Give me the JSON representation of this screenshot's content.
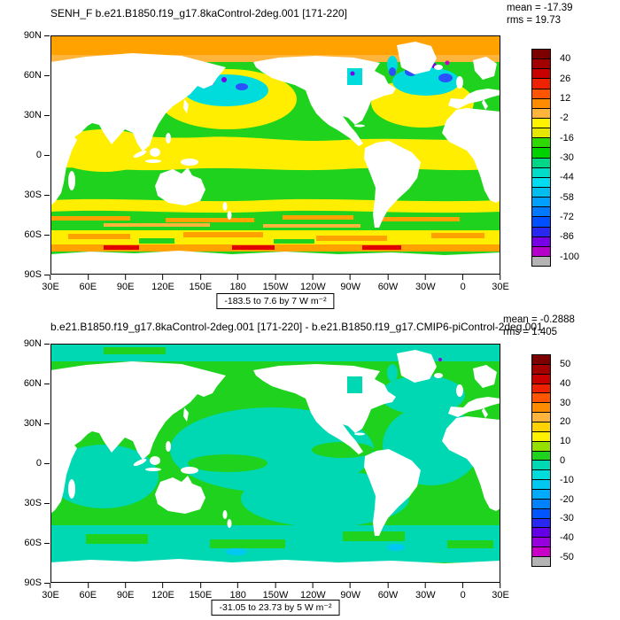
{
  "figure": {
    "background": "#ffffff"
  },
  "chart_data": [
    {
      "type": "heatmap",
      "subtype": "filled-contour-global-map",
      "title": "SENH_F b.e21.B1850.f19_g17.8kaControl-2deg.001 [171-220]",
      "stats": {
        "mean_label": "mean = -17.39",
        "rms_label": "rms = 19.73",
        "mean": -17.39,
        "rms": 19.73
      },
      "field_range_label": "-183.5 to 7.6 by 7  W m⁻²",
      "field_min": -183.5,
      "field_max": 7.6,
      "contour_interval": 7,
      "units": "W m⁻²",
      "xticks": [
        "30E",
        "60E",
        "90E",
        "120E",
        "150E",
        "180",
        "150W",
        "120W",
        "90W",
        "60W",
        "30W",
        "0",
        "30E"
      ],
      "yticks": [
        "90N",
        "60N",
        "30N",
        "0",
        "30S",
        "60S",
        "90S"
      ],
      "map_dominant_colors": [
        "#ffee00",
        "#1ed21e"
      ],
      "colorbar": {
        "position": "right",
        "n_boxes": 22,
        "labels": [
          "40",
          "26",
          "12",
          "-2",
          "-16",
          "-30",
          "-44",
          "-58",
          "-72",
          "-86",
          "-100"
        ],
        "colors": [
          "#7d0000",
          "#a30000",
          "#c90000",
          "#ee2200",
          "#ff5500",
          "#ff8c00",
          "#ffb43c",
          "#fff200",
          "#e6e600",
          "#2fd800",
          "#00d200",
          "#00d787",
          "#00dcc8",
          "#00dcf0",
          "#00bff0",
          "#00a0ff",
          "#0078ff",
          "#0050ff",
          "#2828f0",
          "#7800e6",
          "#b400c8",
          "#b4b4b4"
        ]
      }
    },
    {
      "type": "heatmap",
      "subtype": "filled-contour-global-map-difference",
      "title": "b.e21.B1850.f19_g17.8kaControl-2deg.001 [171-220] - b.e21.B1850.f19_g17.CMIP6-piControl-2deg.001",
      "stats": {
        "mean_label": "mean = -0.2888",
        "rms_label": "rms = 1.405",
        "mean": -0.2888,
        "rms": 1.405
      },
      "field_range_label": "-31.05 to 23.73 by 5  W m⁻²",
      "field_min": -31.05,
      "field_max": 23.73,
      "contour_interval": 5,
      "units": "W m⁻²",
      "xticks": [
        "30E",
        "60E",
        "90E",
        "120E",
        "150E",
        "180",
        "150W",
        "120W",
        "90W",
        "60W",
        "30W",
        "0",
        "30E"
      ],
      "yticks": [
        "90N",
        "60N",
        "30N",
        "0",
        "30S",
        "60S",
        "90S"
      ],
      "map_dominant_colors": [
        "#1ed21e",
        "#00d8b4"
      ],
      "colorbar": {
        "position": "right",
        "n_boxes": 22,
        "labels": [
          "50",
          "40",
          "30",
          "20",
          "10",
          "0",
          "-10",
          "-20",
          "-30",
          "-40",
          "-50"
        ],
        "colors": [
          "#7d0000",
          "#a30000",
          "#c90000",
          "#ee2200",
          "#ff5500",
          "#ff8c00",
          "#ffb43c",
          "#ffd200",
          "#fff200",
          "#96e000",
          "#1ed21e",
          "#00d8b4",
          "#00dcdc",
          "#00c8f0",
          "#00aaff",
          "#0082ff",
          "#0055ff",
          "#2828f0",
          "#6400e6",
          "#9600dc",
          "#c800c8",
          "#b4b4b4"
        ]
      }
    }
  ]
}
